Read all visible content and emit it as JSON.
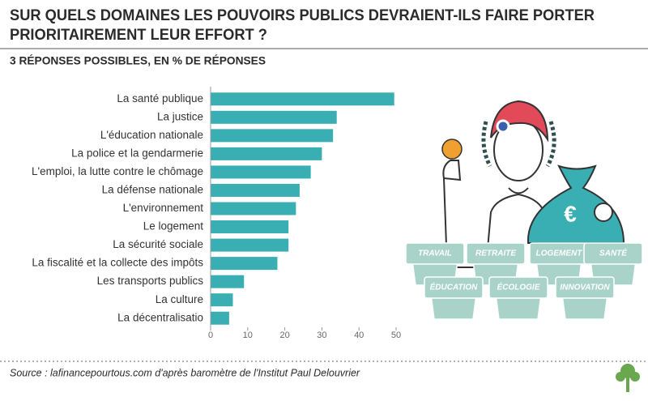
{
  "chart_data": {
    "type": "hbar",
    "title": [
      "SUR QUELS DOMAINES LES POUVOIRS PUBLICS DEVRAIENT-ILS FAIRE PORTER",
      "PRIORITAIREMENT LEUR EFFORT ?"
    ],
    "subtitle": "3 RÉPONSES POSSIBLES, EN % DE RÉPONSES",
    "categories": [
      "La santé publique",
      "La justice",
      "L'éducation nationale",
      "La police et la gendarmerie",
      "L'emploi, la lutte contre le chômage",
      "La défense nationale",
      "L'environnement",
      "Le logement",
      "La sécurité sociale",
      "La fiscalité et la collecte des impôts",
      "Les transports publics",
      "La culture",
      "La décentralisatio"
    ],
    "values": [
      49.5,
      34,
      33,
      30,
      27,
      24,
      23,
      21,
      21,
      18,
      9,
      6,
      5
    ],
    "color": "#3aafb3",
    "xlim": [
      0,
      50
    ],
    "xticks": [
      0,
      10,
      20,
      30,
      40,
      50
    ],
    "grid": false,
    "source": "Source : lafinancepourtous.com d'après baromètre de l'Institut Paul Delouvrier"
  },
  "illustration": {
    "symbol": "€",
    "pots": [
      "TRAVAIL",
      "RETRAITE",
      "LOGEMENT",
      "SANTÉ",
      "ÉDUCATION",
      "ÉCOLOGIE",
      "INNOVATION"
    ]
  }
}
